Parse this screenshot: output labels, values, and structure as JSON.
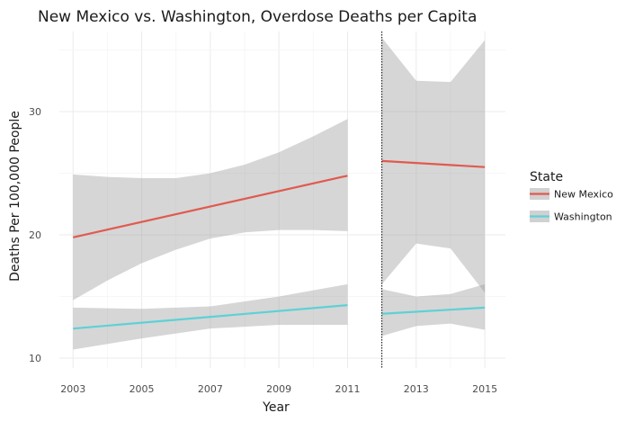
{
  "chart_data": {
    "type": "line",
    "title": "New Mexico vs. Washington, Overdose Deaths per Capita",
    "xlabel": "Year",
    "ylabel": "Deaths Per 100,000 People",
    "xlim": [
      2002.6,
      2015.6
    ],
    "ylim": [
      9.2,
      36.5
    ],
    "x_ticks": [
      2003,
      2005,
      2007,
      2009,
      2011,
      2013,
      2015
    ],
    "y_ticks": [
      10,
      20,
      30
    ],
    "grid": true,
    "legend_placement": "right",
    "legend_title": "State",
    "cutoff_line": {
      "x": 2012,
      "style": "dotted",
      "color": "#000000"
    },
    "series": [
      {
        "name": "New Mexico",
        "color": "#e05a4f",
        "segments": [
          {
            "x": [
              2003,
              2011
            ],
            "y": [
              19.8,
              24.8
            ],
            "ribbon": {
              "x": [
                2003,
                2004,
                2005,
                2006,
                2007,
                2008,
                2009,
                2010,
                2011
              ],
              "upper": [
                24.9,
                24.7,
                24.6,
                24.6,
                25.0,
                25.7,
                26.7,
                28.0,
                29.4
              ],
              "lower": [
                14.7,
                16.3,
                17.7,
                18.8,
                19.7,
                20.2,
                20.4,
                20.4,
                20.3
              ]
            }
          },
          {
            "x": [
              2012,
              2015
            ],
            "y": [
              26.0,
              25.5
            ],
            "ribbon": {
              "x": [
                2012,
                2013,
                2014,
                2015
              ],
              "upper": [
                36.0,
                32.5,
                32.4,
                35.8
              ],
              "lower": [
                16.0,
                19.3,
                18.9,
                15.3
              ]
            }
          }
        ]
      },
      {
        "name": "Washington",
        "color": "#5dd1d6",
        "segments": [
          {
            "x": [
              2003,
              2011
            ],
            "y": [
              12.4,
              14.3
            ],
            "ribbon": {
              "x": [
                2003,
                2005,
                2007,
                2009,
                2011
              ],
              "upper": [
                14.1,
                14.0,
                14.2,
                15.0,
                16.0
              ],
              "lower": [
                10.7,
                11.6,
                12.4,
                12.7,
                12.7
              ]
            }
          },
          {
            "x": [
              2012,
              2015
            ],
            "y": [
              13.6,
              14.1
            ],
            "ribbon": {
              "x": [
                2012,
                2013,
                2014,
                2015
              ],
              "upper": [
                15.6,
                15.0,
                15.2,
                16.0
              ],
              "lower": [
                11.8,
                12.6,
                12.8,
                12.3
              ]
            }
          }
        ]
      }
    ]
  }
}
